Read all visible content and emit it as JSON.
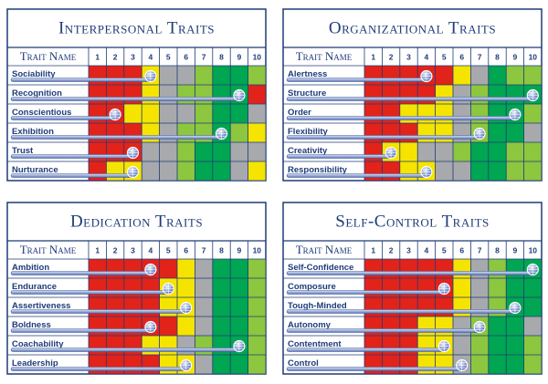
{
  "trait_header": "Trait Name",
  "columns": [
    1,
    2,
    3,
    4,
    5,
    6,
    7,
    8,
    9,
    10
  ],
  "palette": {
    "R": "#e2231a",
    "Y": "#f5e400",
    "N": "#a7a9ac",
    "L": "#8dc63f",
    "G": "#00a651"
  },
  "panels": [
    {
      "title": "Interpersonal Traits",
      "rows": [
        {
          "name": "Sociability",
          "score": 4,
          "cells": "RRRYNNLGGL"
        },
        {
          "name": "Recognition",
          "score": 9,
          "cells": "RRRYNLLGGR"
        },
        {
          "name": "Conscientious",
          "score": 2,
          "cells": "RRYYNNLGGN"
        },
        {
          "name": "Exhibition",
          "score": 8,
          "cells": "RRRYNLLGLY"
        },
        {
          "name": "Trust",
          "score": 3,
          "cells": "RRRNNLGGNN"
        },
        {
          "name": "Nurturance",
          "score": 3,
          "cells": "RYYNNLGGNY"
        }
      ]
    },
    {
      "title": "Organizational Traits",
      "rows": [
        {
          "name": "Alertness",
          "score": 4,
          "cells": "RRRRRYNGLL"
        },
        {
          "name": "Structure",
          "score": 10,
          "cells": "RRRRYNLGGG"
        },
        {
          "name": "Order",
          "score": 9,
          "cells": "RRYYYNLGGL"
        },
        {
          "name": "Flexibility",
          "score": 7,
          "cells": "RRRYYNLGGN"
        },
        {
          "name": "Creativity",
          "score": 2,
          "cells": "RYYNNLGGLL"
        },
        {
          "name": "Responsibility",
          "score": 4,
          "cells": "RRYYNNGGLL"
        }
      ]
    },
    {
      "title": "Dedication Traits",
      "rows": [
        {
          "name": "Ambition",
          "score": 4,
          "cells": "RRRRRYNGGL"
        },
        {
          "name": "Endurance",
          "score": 5,
          "cells": "RRRRYYNGGL"
        },
        {
          "name": "Assertiveness",
          "score": 6,
          "cells": "RRRRYYNGGL"
        },
        {
          "name": "Boldness",
          "score": 4,
          "cells": "RRRRRYNGGL"
        },
        {
          "name": "Coachability",
          "score": 9,
          "cells": "RRRYYNLGGL"
        },
        {
          "name": "Leadership",
          "score": 6,
          "cells": "RRRRYYNGGL"
        }
      ]
    },
    {
      "title": "Self-Control Traits",
      "rows": [
        {
          "name": "Self-Confidence",
          "score": 10,
          "cells": "RRRRRYNLGG"
        },
        {
          "name": "Composure",
          "score": 5,
          "cells": "RRRRRYNLGG"
        },
        {
          "name": "Tough-Minded",
          "score": 9,
          "cells": "RRRRRYNLGG"
        },
        {
          "name": "Autonomy",
          "score": 7,
          "cells": "RRRYYNLGGN"
        },
        {
          "name": "Contentment",
          "score": 5,
          "cells": "RRRYYNLGGL"
        },
        {
          "name": "Control",
          "score": 6,
          "cells": "RRRYYNLGGL"
        }
      ]
    }
  ]
}
